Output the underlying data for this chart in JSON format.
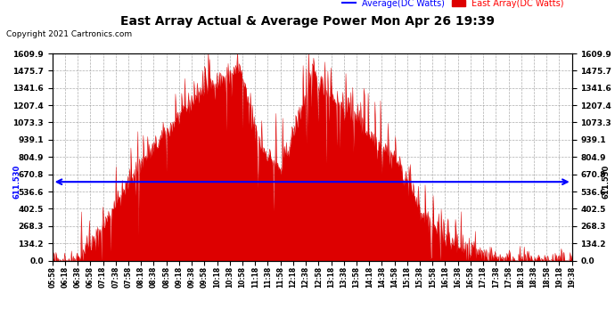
{
  "title": "East Array Actual & Average Power Mon Apr 26 19:39",
  "copyright": "Copyright 2021 Cartronics.com",
  "legend_avg": "Average(DC Watts)",
  "legend_east": "East Array(DC Watts)",
  "avg_value": 611.53,
  "yticks": [
    0.0,
    134.2,
    268.3,
    402.5,
    536.6,
    670.8,
    804.9,
    939.1,
    1073.3,
    1207.4,
    1341.6,
    1475.7,
    1609.9
  ],
  "ymax": 1609.9,
  "ymin": 0.0,
  "fill_color": "#dd0000",
  "avg_line_color": "blue",
  "background_color": "#ffffff",
  "grid_color": "#999999",
  "title_color": "black",
  "copyright_color": "black",
  "xtick_labels": [
    "05:58",
    "06:18",
    "06:38",
    "06:58",
    "07:18",
    "07:38",
    "07:58",
    "08:18",
    "08:38",
    "08:58",
    "09:18",
    "09:38",
    "09:58",
    "10:18",
    "10:38",
    "10:58",
    "11:18",
    "11:38",
    "11:58",
    "12:18",
    "12:38",
    "12:58",
    "13:18",
    "13:38",
    "13:58",
    "14:18",
    "14:38",
    "14:58",
    "15:18",
    "15:38",
    "15:58",
    "16:18",
    "16:38",
    "16:58",
    "17:18",
    "17:38",
    "17:58",
    "18:18",
    "18:38",
    "18:58",
    "19:18",
    "19:38"
  ],
  "num_points": 840,
  "seed": 42
}
